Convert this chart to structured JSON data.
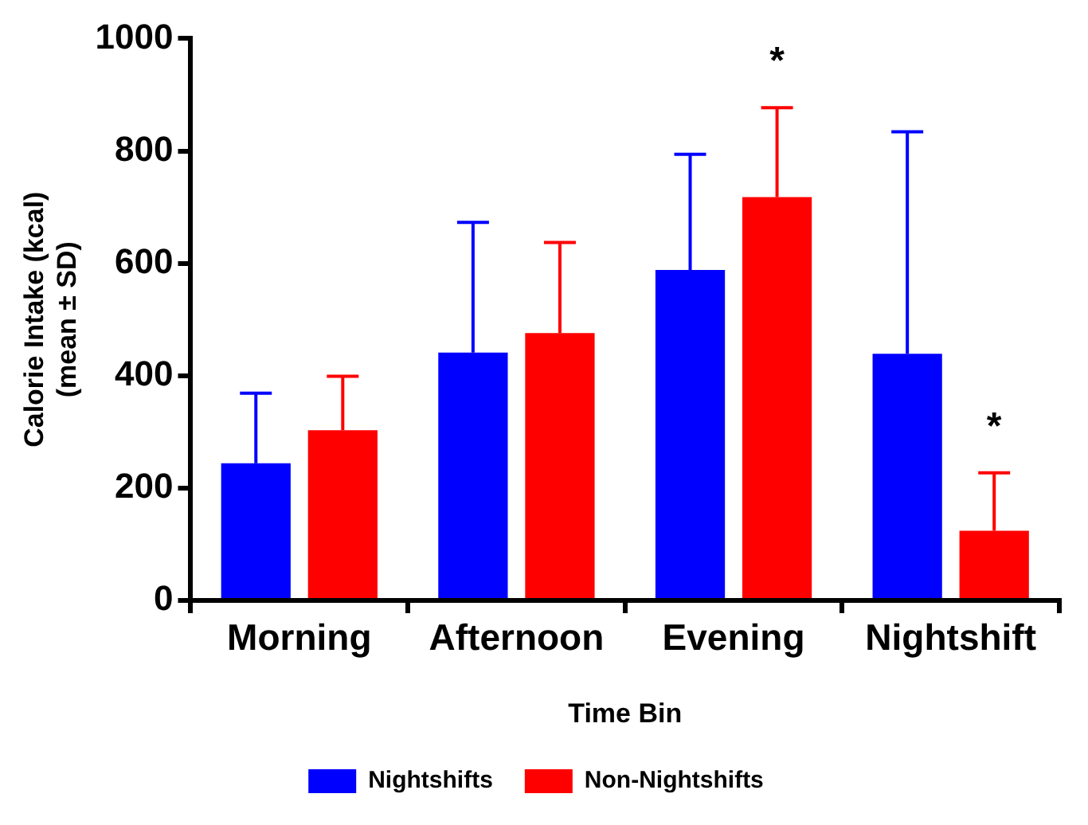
{
  "chart_data": {
    "type": "bar",
    "xlabel": "Time Bin",
    "ylabel": "Calorie Intake (kcal)\n(mean ± SD)",
    "categories": [
      "Morning",
      "Afternoon",
      "Evening",
      "Nightshift"
    ],
    "series": [
      {
        "name": "Nightshifts",
        "color": "#0000ff",
        "values": [
          244,
          441,
          588,
          439
        ],
        "errors": [
          [
            244,
            369
          ],
          [
            441,
            673
          ],
          [
            588,
            794
          ],
          [
            439,
            834
          ]
        ]
      },
      {
        "name": "Non-Nightshifts",
        "color": "#ff0000",
        "values": [
          303,
          476,
          718,
          124
        ],
        "errors": [
          [
            303,
            399
          ],
          [
            476,
            637
          ],
          [
            718,
            877
          ],
          [
            124,
            227
          ]
        ]
      }
    ],
    "ylim": [
      0,
      1000
    ],
    "yticks": [
      0,
      200,
      400,
      600,
      800,
      1000
    ],
    "grid": false,
    "legend": "bottom",
    "annotations": [
      "*",
      "*"
    ]
  }
}
